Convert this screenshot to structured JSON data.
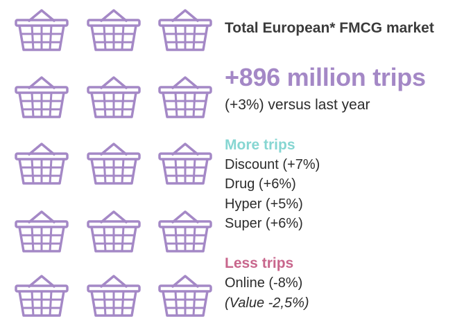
{
  "icon": {
    "name": "shopping-basket-icon",
    "color": "#a488c6",
    "rows": 5,
    "columns": 3
  },
  "summary": {
    "market_title": "Total European* FMCG market",
    "headline": "+896 million trips",
    "subline": "(+3%) versus last year"
  },
  "more_trips": {
    "title": "More trips",
    "color": "#86d6d2",
    "items": [
      "Discount (+7%)",
      "Drug (+6%)",
      "Hyper (+5%)",
      "Super (+6%)"
    ]
  },
  "less_trips": {
    "title": "Less trips",
    "color": "#c8668c",
    "items": [
      "Online  (-8%)",
      "(Value -2,5%)"
    ]
  }
}
